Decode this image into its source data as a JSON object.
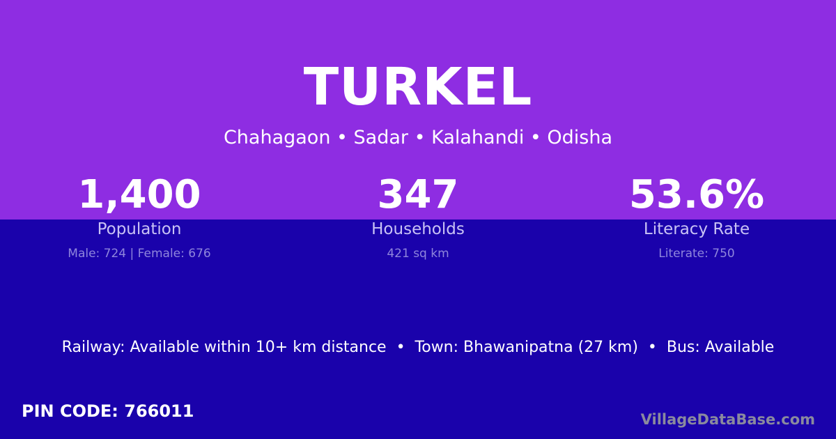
{
  "colors": {
    "top_background": "#8e2de2",
    "bottom_background": "#1a02ab"
  },
  "title": "TURKEL",
  "subtitle": "Chahagaon • Sadar • Kalahandi • Odisha",
  "stats": [
    {
      "value": "1,400",
      "label": "Population",
      "detail": "Male: 724 | Female: 676"
    },
    {
      "value": "347",
      "label": "Households",
      "detail": "421 sq km"
    },
    {
      "value": "53.6%",
      "label": "Literacy Rate",
      "detail": "Literate: 750"
    }
  ],
  "info": "Railway: Available within 10+ km distance  •  Town: Bhawanipatna (27 km)  •  Bus: Available",
  "pin": "PIN CODE: 766011",
  "brand": "VillageDataBase.com"
}
